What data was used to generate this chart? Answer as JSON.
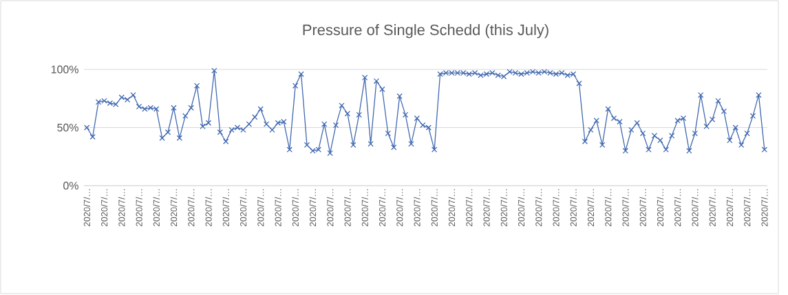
{
  "chart_data": {
    "type": "line",
    "title": "Pressure of Single Schedd (this July)",
    "categories": [
      "2020/7/…",
      null,
      null,
      "2020/7/…",
      null,
      null,
      "2020/7/…",
      null,
      null,
      "2020/7/…",
      null,
      null,
      "2020/7/…",
      null,
      null,
      "2020/7/…",
      null,
      null,
      "2020/7/…",
      null,
      null,
      "2020/7/…",
      null,
      null,
      "2020/7/…",
      null,
      null,
      "2020/7/…",
      null,
      null,
      "2020/7/…",
      null,
      null,
      "2020/7/…",
      null,
      null,
      "2020/7/…",
      null,
      null,
      "2020/7/…",
      null,
      null,
      "2020/7/…",
      null,
      null,
      "2020/7/…",
      null,
      null,
      "2020/7/…",
      null,
      null,
      "2020/7/…",
      null,
      null,
      "2020/7/…",
      null,
      null,
      "2020/7/…",
      null,
      null,
      "2020/7/…",
      null,
      null,
      "2020/7/…",
      null,
      null,
      "2020/7/…",
      null,
      null,
      "2020/7/…",
      null,
      null,
      "2020/7/…",
      null,
      null,
      "2020/7/…",
      null,
      null,
      "2020/7/…",
      null,
      null,
      "2020/7/…",
      null,
      null,
      "2020/7/…",
      null,
      null,
      "2020/7/…",
      null,
      null,
      "2020/7/…",
      null,
      null,
      "2020/7/…",
      null,
      null,
      "2020/7/…",
      null,
      null,
      "2020/7/…",
      null,
      null,
      "2020/7/…",
      null,
      null,
      "2020/7/…",
      null,
      null,
      "2020/7/…",
      null,
      null,
      "2020/7/…",
      null,
      null,
      "2020/7/…",
      null,
      null,
      "2020/7/…"
    ],
    "series": [
      {
        "color": "#4068b0",
        "values": [
          50,
          42,
          72,
          73,
          71,
          70,
          76,
          74,
          78,
          68,
          66,
          67,
          66,
          41,
          46,
          67,
          41,
          60,
          67,
          86,
          51,
          54,
          99,
          46,
          38,
          48,
          50,
          48,
          53,
          59,
          66,
          53,
          48,
          54,
          55,
          31,
          86,
          96,
          35,
          30,
          31,
          53,
          28,
          52,
          69,
          62,
          35,
          61,
          93,
          36,
          90,
          83,
          45,
          33,
          77,
          61,
          36,
          58,
          52,
          50,
          31,
          96,
          97,
          97,
          97,
          97,
          96,
          97,
          95,
          96,
          97,
          95,
          94,
          98,
          97,
          96,
          97,
          98,
          97,
          98,
          97,
          96,
          97,
          95,
          96,
          88,
          38,
          48,
          56,
          35,
          66,
          58,
          55,
          30,
          48,
          54,
          45,
          31,
          43,
          39,
          31,
          43,
          56,
          58,
          30,
          45,
          78,
          51,
          57,
          73,
          64,
          39,
          50,
          35,
          45,
          60,
          78,
          31
        ]
      }
    ],
    "ylim": [
      0,
      100
    ],
    "yticks": [
      {
        "value": 0,
        "label": "0%"
      },
      {
        "value": 50,
        "label": "50%"
      },
      {
        "value": 100,
        "label": "100%"
      }
    ],
    "grid": "y",
    "marker": "cross",
    "line_style": "solid"
  }
}
